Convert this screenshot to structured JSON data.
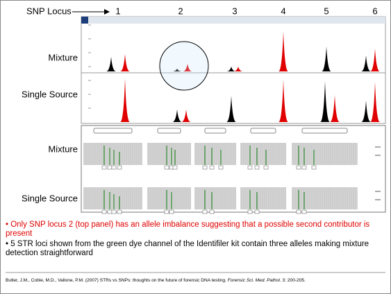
{
  "header": {
    "label": "SNP Locus",
    "loci": [
      1,
      2,
      3,
      4,
      5,
      6
    ]
  },
  "top_panel": {
    "labels": [
      "Mixture",
      "Single Source"
    ]
  },
  "bottom_panel": {
    "labels": [
      "Mixture",
      "Single Source"
    ]
  },
  "bullets": [
    "• Only SNP locus 2 (top panel) has an allele imbalance suggesting that a possible second contributor is present",
    "• 5 STR loci shown from the green dye channel of the Identifiler kit contain three alleles making mixture detection straightforward"
  ],
  "citation": {
    "authors": "Butler, J.M., Coble, M.D., Vallone, P.M. (2007) STRs vs SNPs: thoughts on the future of forensic DNA testing.",
    "journal": "Forensic Sci. Med. Pathol.",
    "rest": "3: 200-205."
  }
}
